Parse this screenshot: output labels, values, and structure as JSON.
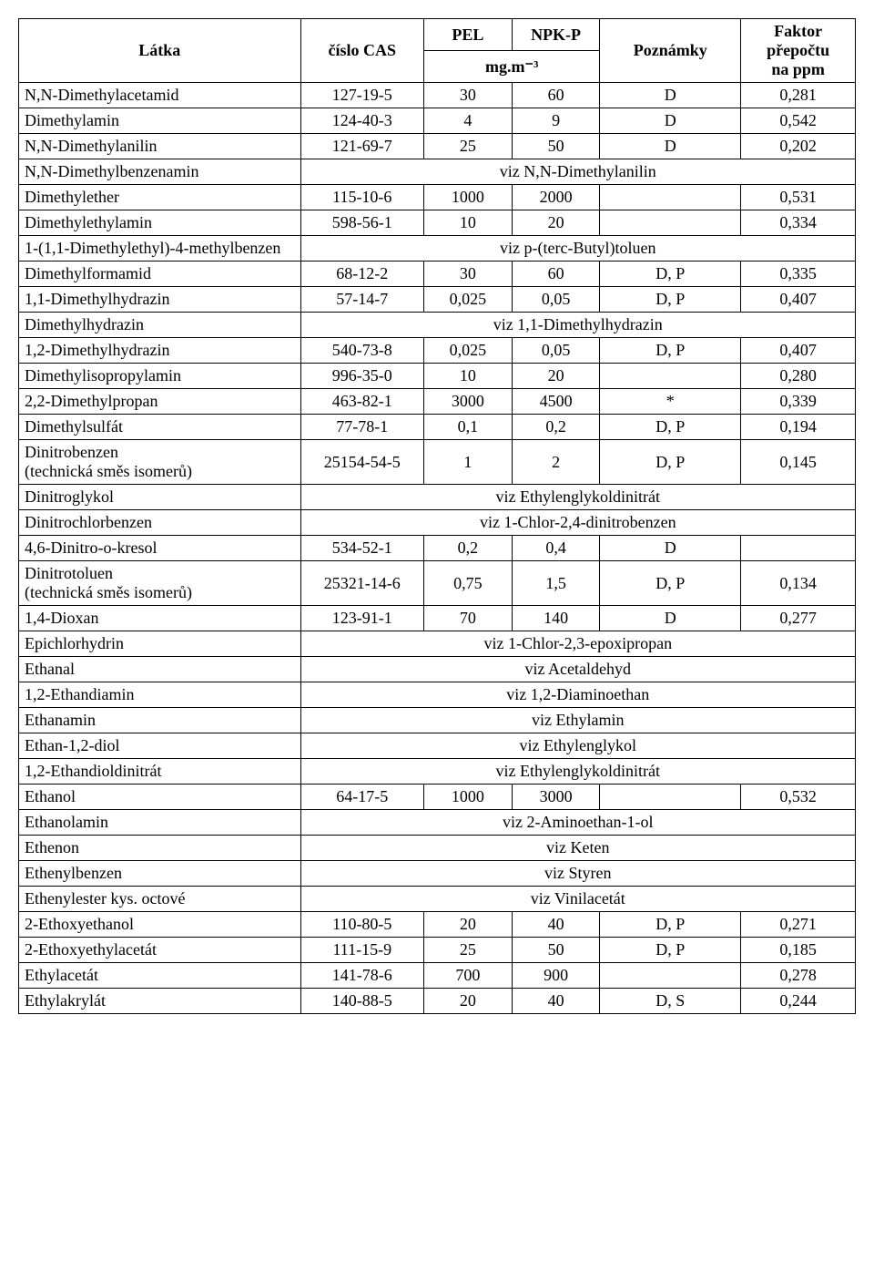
{
  "table": {
    "header": {
      "latka": "Látka",
      "cas": "číslo CAS",
      "pel": "PEL",
      "npk": "NPK-P",
      "unit": "mg.m⁻³",
      "pozn": "Poznámky",
      "faktor_line1": "Faktor",
      "faktor_line2": "přepočtu",
      "faktor_line3": "na ppm"
    },
    "rows": [
      {
        "type": "data",
        "latka": "N,N-Dimethylacetamid",
        "cas": "127-19-5",
        "pel": "30",
        "npk": "60",
        "pozn": "D",
        "fakt": "0,281"
      },
      {
        "type": "data",
        "latka": "Dimethylamin",
        "cas": "124-40-3",
        "pel": "4",
        "npk": "9",
        "pozn": "D",
        "fakt": "0,542"
      },
      {
        "type": "data",
        "latka": "N,N-Dimethylanilin",
        "cas": "121-69-7",
        "pel": "25",
        "npk": "50",
        "pozn": "D",
        "fakt": "0,202"
      },
      {
        "type": "ref",
        "latka": "N,N-Dimethylbenzenamin",
        "ref": "viz N,N-Dimethylanilin"
      },
      {
        "type": "data",
        "latka": "Dimethylether",
        "cas": "115-10-6",
        "pel": "1000",
        "npk": "2000",
        "pozn": "",
        "fakt": "0,531"
      },
      {
        "type": "data",
        "latka": "Dimethylethylamin",
        "cas": "598-56-1",
        "pel": "10",
        "npk": "20",
        "pozn": "",
        "fakt": "0,334"
      },
      {
        "type": "ref",
        "latka": "1-(1,1-Dimethylethyl)-4-methylbenzen",
        "ref": "viz p-(terc-Butyl)toluen"
      },
      {
        "type": "data",
        "latka": "Dimethylformamid",
        "cas": "68-12-2",
        "pel": "30",
        "npk": "60",
        "pozn": "D, P",
        "fakt": "0,335"
      },
      {
        "type": "data",
        "latka": "1,1-Dimethylhydrazin",
        "cas": "57-14-7",
        "pel": "0,025",
        "npk": "0,05",
        "pozn": "D, P",
        "fakt": "0,407"
      },
      {
        "type": "ref",
        "latka": "Dimethylhydrazin",
        "ref": "viz 1,1-Dimethylhydrazin"
      },
      {
        "type": "data",
        "latka": "1,2-Dimethylhydrazin",
        "cas": "540-73-8",
        "pel": "0,025",
        "npk": "0,05",
        "pozn": "D, P",
        "fakt": "0,407"
      },
      {
        "type": "data",
        "latka": "Dimethylisopropylamin",
        "cas": "996-35-0",
        "pel": "10",
        "npk": "20",
        "pozn": "",
        "fakt": "0,280"
      },
      {
        "type": "data",
        "latka": "2,2-Dimethylpropan",
        "cas": "463-82-1",
        "pel": "3000",
        "npk": "4500",
        "pozn": "*",
        "fakt": "0,339"
      },
      {
        "type": "data",
        "latka": "Dimethylsulfát",
        "cas": "77-78-1",
        "pel": "0,1",
        "npk": "0,2",
        "pozn": "D, P",
        "fakt": "0,194"
      },
      {
        "type": "data",
        "latka": "Dinitrobenzen\n(technická směs isomerů)",
        "cas": "25154-54-5",
        "pel": "1",
        "npk": "2",
        "pozn": "D, P",
        "fakt": "0,145"
      },
      {
        "type": "ref",
        "latka": "Dinitroglykol",
        "ref": "viz Ethylenglykoldinitrát"
      },
      {
        "type": "ref",
        "latka": "Dinitrochlorbenzen",
        "ref": "viz 1-Chlor-2,4-dinitrobenzen"
      },
      {
        "type": "data",
        "latka": "4,6-Dinitro-o-kresol",
        "cas": "534-52-1",
        "pel": "0,2",
        "npk": "0,4",
        "pozn": "D",
        "fakt": ""
      },
      {
        "type": "data",
        "latka": "Dinitrotoluen\n(technická směs isomerů)",
        "cas": "25321-14-6",
        "pel": "0,75",
        "npk": "1,5",
        "pozn": "D, P",
        "fakt": "0,134"
      },
      {
        "type": "data",
        "latka": "1,4-Dioxan",
        "cas": "123-91-1",
        "pel": "70",
        "npk": "140",
        "pozn": "D",
        "fakt": "0,277"
      },
      {
        "type": "ref",
        "latka": "Epichlorhydrin",
        "ref": "viz 1-Chlor-2,3-epoxipropan"
      },
      {
        "type": "ref",
        "latka": "Ethanal",
        "ref": "viz Acetaldehyd"
      },
      {
        "type": "ref",
        "latka": "1,2-Ethandiamin",
        "ref": "viz 1,2-Diaminoethan"
      },
      {
        "type": "ref",
        "latka": "Ethanamin",
        "ref": "viz Ethylamin"
      },
      {
        "type": "ref",
        "latka": "Ethan-1,2-diol",
        "ref": "viz Ethylenglykol"
      },
      {
        "type": "ref",
        "latka": "1,2-Ethandioldinitrát",
        "ref": "viz Ethylenglykoldinitrát"
      },
      {
        "type": "data",
        "latka": "Ethanol",
        "cas": "64-17-5",
        "pel": "1000",
        "npk": "3000",
        "pozn": "",
        "fakt": "0,532"
      },
      {
        "type": "ref",
        "latka": "Ethanolamin",
        "ref": "viz 2-Aminoethan-1-ol"
      },
      {
        "type": "ref",
        "latka": "Ethenon",
        "ref": "viz Keten"
      },
      {
        "type": "ref",
        "latka": "Ethenylbenzen",
        "ref": "viz Styren"
      },
      {
        "type": "ref",
        "latka": "Ethenylester kys. octové",
        "ref": "viz Vinilacetát"
      },
      {
        "type": "data",
        "latka": "2-Ethoxyethanol",
        "cas": "110-80-5",
        "pel": "20",
        "npk": "40",
        "pozn": "D, P",
        "fakt": "0,271"
      },
      {
        "type": "data",
        "latka": "2-Ethoxyethylacetát",
        "cas": "111-15-9",
        "pel": "25",
        "npk": "50",
        "pozn": "D, P",
        "fakt": "0,185"
      },
      {
        "type": "data",
        "latka": "Ethylacetát",
        "cas": "141-78-6",
        "pel": "700",
        "npk": "900",
        "pozn": "",
        "fakt": "0,278"
      },
      {
        "type": "data",
        "latka": "Ethylakrylát",
        "cas": "140-88-5",
        "pel": "20",
        "npk": "40",
        "pozn": "D, S",
        "fakt": "0,244"
      }
    ]
  },
  "style": {
    "font_family": "Times New Roman",
    "font_size_pt": 14,
    "border_color": "#000000",
    "background_color": "#ffffff",
    "text_color": "#000000",
    "col_widths": [
      "32%",
      "14%",
      "10%",
      "10%",
      "16%",
      "13%"
    ]
  }
}
